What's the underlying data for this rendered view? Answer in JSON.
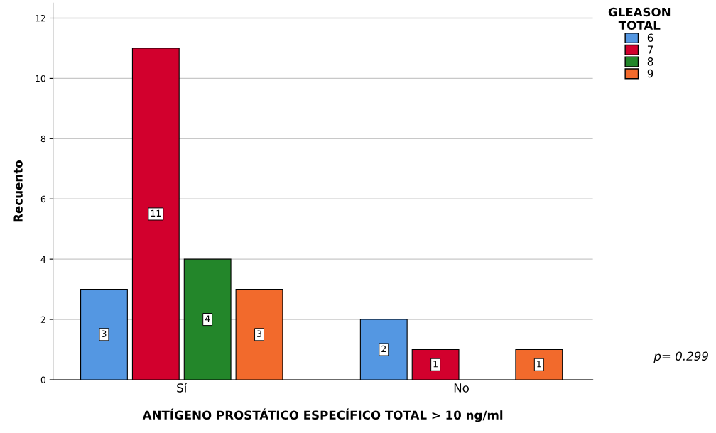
{
  "chart_data": {
    "type": "bar",
    "xlabel": "ANTÍGENO PROSTÁTICO ESPECÍFICO TOTAL > 10 ng/ml",
    "ylabel": "Recuento",
    "legend_title": "GLEASON\nTOTAL",
    "categories": [
      "Sí",
      "No"
    ],
    "series": [
      {
        "name": "6",
        "color": "#5497e2",
        "values": [
          3,
          2
        ]
      },
      {
        "name": "7",
        "color": "#d2002d",
        "values": [
          11,
          1
        ]
      },
      {
        "name": "8",
        "color": "#23862a",
        "values": [
          4,
          null
        ]
      },
      {
        "name": "9",
        "color": "#f26a2c",
        "values": [
          3,
          1
        ]
      }
    ],
    "ylim": [
      0,
      12.5
    ],
    "yticks": [
      0,
      2,
      4,
      6,
      8,
      10,
      12
    ],
    "grid": "y",
    "legend": "top right",
    "data_labels": true,
    "annotations": [
      "p= 0.299"
    ]
  }
}
